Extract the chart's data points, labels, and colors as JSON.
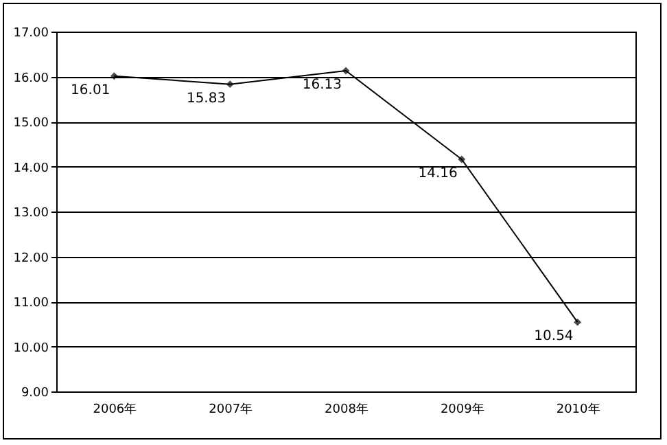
{
  "chart_data": {
    "type": "line",
    "categories": [
      "2006年",
      "2007年",
      "2008年",
      "2009年",
      "2010年"
    ],
    "series": [
      {
        "color": "#000000",
        "values": [
          16.01,
          15.83,
          16.13,
          14.16,
          10.54
        ]
      }
    ],
    "ylim": [
      9,
      17
    ],
    "yticks": [
      {
        "value": 9,
        "label": "9.00"
      },
      {
        "value": 10,
        "label": "10.00"
      },
      {
        "value": 11,
        "label": "11.00"
      },
      {
        "value": 12,
        "label": "12.00"
      },
      {
        "value": 13,
        "label": "13.00"
      },
      {
        "value": 14,
        "label": "14.00"
      },
      {
        "value": 15,
        "label": "15.00"
      },
      {
        "value": 16,
        "label": "16.00"
      },
      {
        "value": 17,
        "label": "17.00"
      }
    ],
    "grid": "y",
    "marker": "diamond",
    "line_style": "solid",
    "data_labels": true
  }
}
